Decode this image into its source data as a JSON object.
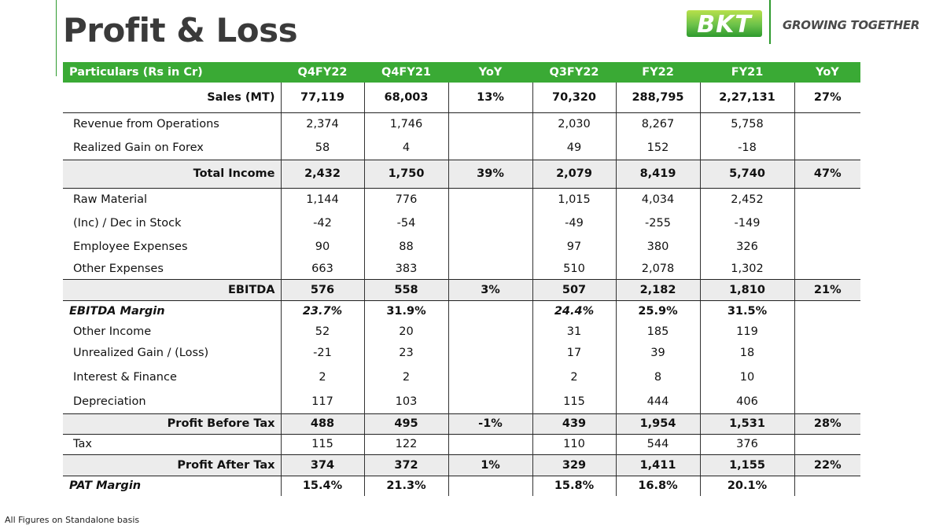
{
  "page": {
    "title": "Profit & Loss",
    "tagline": "GROWING TOGETHER",
    "logo_text": "BKT",
    "footnote": "All Figures on Standalone basis"
  },
  "colors": {
    "header_green": "#3aaa35",
    "highlight_gray": "#ececec",
    "title_gray": "#3a3a3a"
  },
  "table": {
    "header": [
      "Particulars (Rs in Cr)",
      "Q4FY22",
      "Q4FY21",
      "YoY",
      "Q3FY22",
      "FY22",
      "FY21",
      "YoY"
    ],
    "rows": [
      {
        "label": "Sales (MT)",
        "values": [
          "77,119",
          "68,003",
          "13%",
          "70,320",
          "288,795",
          "2,27,131",
          "27%"
        ]
      },
      {
        "label": "Revenue from Operations",
        "values": [
          "2,374",
          "1,746",
          "",
          "2,030",
          "8,267",
          "5,758",
          ""
        ]
      },
      {
        "label": "Realized Gain on Forex",
        "values": [
          "58",
          "4",
          "",
          "49",
          "152",
          "-18",
          ""
        ]
      },
      {
        "label": "Total Income",
        "values": [
          "2,432",
          "1,750",
          "39%",
          "2,079",
          "8,419",
          "5,740",
          "47%"
        ]
      },
      {
        "label": "Raw Material",
        "values": [
          "1,144",
          "776",
          "",
          "1,015",
          "4,034",
          "2,452",
          ""
        ]
      },
      {
        "label": "(Inc) / Dec in Stock",
        "values": [
          "-42",
          "-54",
          "",
          "-49",
          "-255",
          "-149",
          ""
        ]
      },
      {
        "label": "Employee Expenses",
        "values": [
          "90",
          "88",
          "",
          "97",
          "380",
          "326",
          ""
        ]
      },
      {
        "label": "Other Expenses",
        "values": [
          "663",
          "383",
          "",
          "510",
          "2,078",
          "1,302",
          ""
        ]
      },
      {
        "label": "EBITDA",
        "values": [
          "576",
          "558",
          "3%",
          "507",
          "2,182",
          "1,810",
          "21%"
        ]
      },
      {
        "label": "EBITDA Margin",
        "values": [
          "23.7%",
          "31.9%",
          "",
          "24.4%",
          "25.9%",
          "31.5%",
          ""
        ]
      },
      {
        "label": "Other Income",
        "values": [
          "52",
          "20",
          "",
          "31",
          "185",
          "119",
          ""
        ]
      },
      {
        "label": "Unrealized Gain / (Loss)",
        "values": [
          "-21",
          "23",
          "",
          "17",
          "39",
          "18",
          ""
        ]
      },
      {
        "label": "Interest & Finance",
        "values": [
          "2",
          "2",
          "",
          "2",
          "8",
          "10",
          ""
        ]
      },
      {
        "label": "Depreciation",
        "values": [
          "117",
          "103",
          "",
          "115",
          "444",
          "406",
          ""
        ]
      },
      {
        "label": "Profit Before Tax",
        "values": [
          "488",
          "495",
          "-1%",
          "439",
          "1,954",
          "1,531",
          "28%"
        ]
      },
      {
        "label": "Tax",
        "values": [
          "115",
          "122",
          "",
          "110",
          "544",
          "376",
          ""
        ]
      },
      {
        "label": "Profit  After Tax",
        "values": [
          "374",
          "372",
          "1%",
          "329",
          "1,411",
          "1,155",
          "22%"
        ]
      },
      {
        "label": "PAT Margin",
        "values": [
          "15.4%",
          "21.3%",
          "",
          "15.8%",
          "16.8%",
          "20.1%",
          ""
        ]
      }
    ]
  }
}
